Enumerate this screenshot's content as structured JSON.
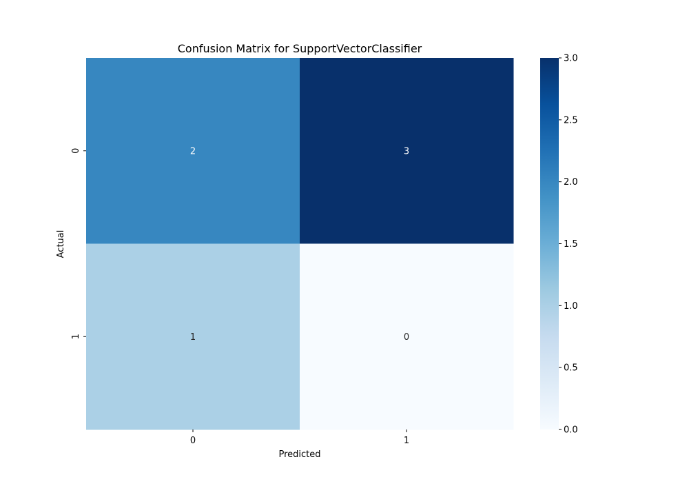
{
  "chart_data": {
    "type": "heatmap",
    "title": "Confusion Matrix for SupportVectorClassifier",
    "xlabel": "Predicted",
    "ylabel": "Actual",
    "x_categories": [
      "0",
      "1"
    ],
    "y_categories": [
      "0",
      "1"
    ],
    "values": [
      [
        2,
        3
      ],
      [
        1,
        0
      ]
    ],
    "colormap": "Blues",
    "colorbar": {
      "range": [
        0.0,
        3.0
      ],
      "ticks": [
        0.0,
        0.5,
        1.0,
        1.5,
        2.0,
        2.5,
        3.0
      ],
      "tick_labels": [
        "0.0",
        "0.5",
        "1.0",
        "1.5",
        "2.0",
        "2.5",
        "3.0"
      ]
    },
    "grid": false,
    "legend": "colorbar-right"
  }
}
